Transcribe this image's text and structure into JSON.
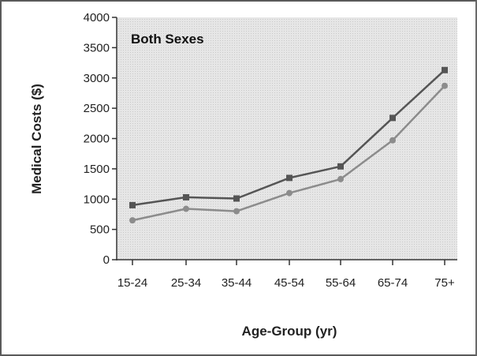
{
  "chart_data": {
    "type": "line",
    "title": "Both Sexes",
    "xlabel": "Age-Group (yr)",
    "ylabel": "Medical Costs ($)",
    "categories": [
      "15-24",
      "25-34",
      "35-44",
      "45-54",
      "55-64",
      "65-74",
      "75+"
    ],
    "yticks": [
      "0",
      "500",
      "1000",
      "1500",
      "2000",
      "2500",
      "3000",
      "3500",
      "4000"
    ],
    "ylim": [
      0,
      4000
    ],
    "grid": false,
    "legend": "none",
    "series": [
      {
        "values": [
          900,
          1030,
          1010,
          1350,
          1540,
          2340,
          3130
        ],
        "color": "#555555",
        "marker": "square"
      },
      {
        "values": [
          650,
          840,
          800,
          1100,
          1330,
          1970,
          2870
        ],
        "color": "#8c8c8c",
        "marker": "circle"
      }
    ],
    "colors": {
      "panel_background": "#e4e4e4",
      "axis": "#333333"
    }
  }
}
